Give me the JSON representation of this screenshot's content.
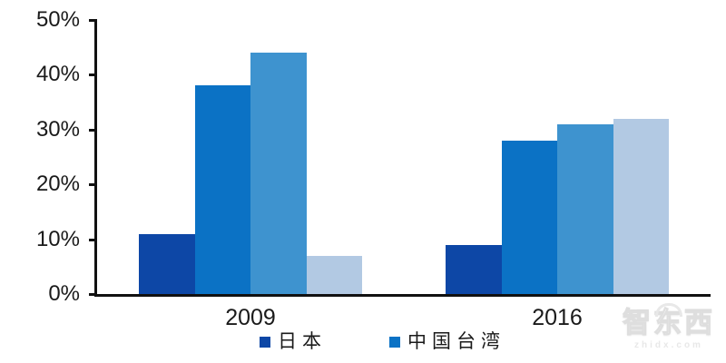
{
  "chart_data": {
    "type": "bar",
    "title": "",
    "categories": [
      "2009",
      "2016"
    ],
    "series": [
      {
        "name": "日本",
        "color": "#0D47A6",
        "values": [
          11,
          9
        ]
      },
      {
        "name": "中国台湾",
        "color": "#0B72C5",
        "values": [
          38,
          28
        ]
      },
      {
        "name": "",
        "color": "#3E93CF",
        "values": [
          44,
          31
        ]
      },
      {
        "name": "",
        "color": "#B2C9E3",
        "values": [
          7,
          32
        ]
      }
    ],
    "unit": "%",
    "xlabel": "",
    "ylabel": "",
    "ylim": [
      0,
      50
    ],
    "ytick_step": 10,
    "ytick_labels": [
      "0%",
      "10%",
      "20%",
      "30%",
      "40%",
      "50%"
    ],
    "grid": false,
    "axis_color": "#111111",
    "text_color": "#1a1a1a",
    "legend": {
      "position": "bottom",
      "entries": [
        {
          "label": "日本",
          "color": "#0D47A6"
        },
        {
          "label": "中国台湾",
          "color": "#0B72C5"
        }
      ]
    }
  },
  "watermark": {
    "title": "智东西",
    "subtitle": "zhidx.com"
  }
}
